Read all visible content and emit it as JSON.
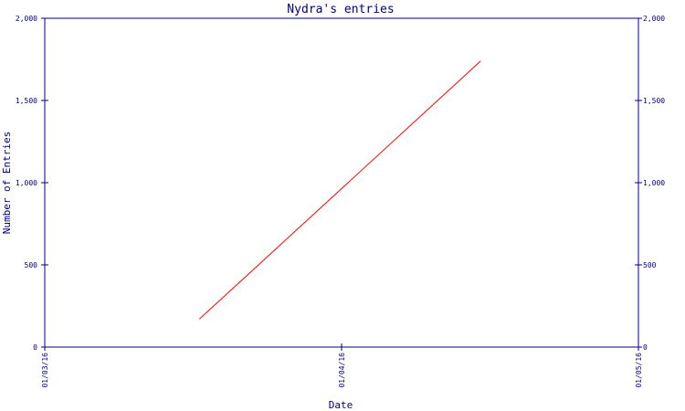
{
  "chart_data": {
    "type": "line",
    "title": "Nydra's entries",
    "xlabel": "Date",
    "ylabel": "Number of Entries",
    "x_ticks": [
      "01/03/16",
      "01/04/16",
      "01/05/16"
    ],
    "y_ticks": [
      "0",
      "500",
      "1,000",
      "1,500",
      "2,000"
    ],
    "y_ticks_right": [
      "0",
      "500",
      "1,000",
      "1,500",
      "2,000"
    ],
    "xlim": [
      "2016-01-03",
      "2016-01-05"
    ],
    "ylim": [
      0,
      2000
    ],
    "series": [
      {
        "x": [
          "2016-01-03T12:30",
          "2016-01-04T11:15"
        ],
        "y": [
          170,
          1740
        ]
      }
    ],
    "grid": false,
    "colors": {
      "frame": "#000080",
      "text": "#000080",
      "series": "#ff0000",
      "background": "#ffffff"
    }
  }
}
